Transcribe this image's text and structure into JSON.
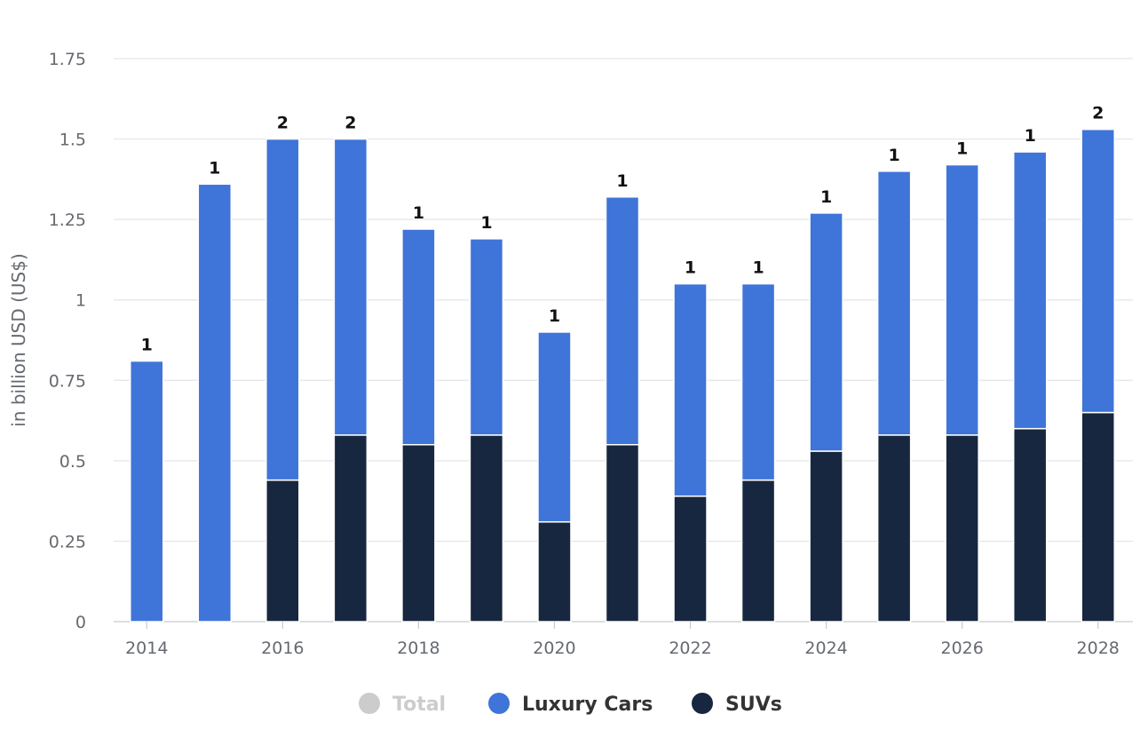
{
  "chart_data": {
    "type": "bar",
    "stacked": true,
    "categories": [
      "2014",
      "2015",
      "2016",
      "2017",
      "2018",
      "2019",
      "2020",
      "2021",
      "2022",
      "2023",
      "2024",
      "2025",
      "2026",
      "2027",
      "2028"
    ],
    "x_tick_labels": [
      "2014",
      "2016",
      "2018",
      "2020",
      "2022",
      "2024",
      "2026",
      "2028"
    ],
    "series": [
      {
        "name": "SUVs",
        "color": "#17273f",
        "values": [
          0,
          0,
          0.44,
          0.58,
          0.55,
          0.58,
          0.31,
          0.55,
          0.39,
          0.44,
          0.53,
          0.58,
          0.58,
          0.6,
          0.65
        ]
      },
      {
        "name": "Luxury Cars",
        "color": "#3f74d9",
        "values": [
          0.81,
          1.36,
          1.06,
          0.92,
          0.67,
          0.61,
          0.59,
          0.77,
          0.66,
          0.61,
          0.74,
          0.82,
          0.84,
          0.86,
          0.88
        ]
      }
    ],
    "total_labels": [
      "1",
      "1",
      "2",
      "2",
      "1",
      "1",
      "1",
      "1",
      "1",
      "1",
      "1",
      "1",
      "1",
      "1",
      "2"
    ],
    "ylabel": "in billion USD (US$)",
    "ylim": [
      0,
      1.75
    ],
    "y_ticks": [
      0,
      0.25,
      0.5,
      0.75,
      1,
      1.25,
      1.5,
      1.75
    ],
    "y_tick_labels": [
      "0",
      "0.25",
      "0.5",
      "0.75",
      "1",
      "1.25",
      "1.5",
      "1.75"
    ],
    "grid": true,
    "legend_position": "bottom-center",
    "legend": [
      {
        "name": "Total",
        "color": "#cccccc",
        "text_color": "#cccccc",
        "hidden": true
      },
      {
        "name": "Luxury Cars",
        "color": "#3f74d9",
        "text_color": "#333333"
      },
      {
        "name": "SUVs",
        "color": "#17273f",
        "text_color": "#333333"
      }
    ]
  }
}
